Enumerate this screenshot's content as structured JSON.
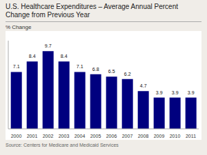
{
  "chart_data": {
    "type": "bar",
    "title": "U.S. Healthcare Expenditures – Average Annual Percent Change from Previous Year",
    "ylabel": "% Change",
    "annotations": [
      "Source: Centers for Medicare and Medicaid Services"
    ],
    "categories": [
      "2000",
      "2001",
      "2002",
      "2003",
      "2004",
      "2005",
      "2006",
      "2007",
      "2008",
      "2009",
      "2010",
      "2011"
    ],
    "values": [
      7.1,
      8.4,
      9.7,
      8.4,
      7.1,
      6.8,
      6.5,
      6.2,
      4.7,
      3.9,
      3.9,
      3.9
    ],
    "color": "#00007F",
    "ylim": [
      0,
      11
    ],
    "data_labels": true,
    "tick_labels": "x"
  }
}
